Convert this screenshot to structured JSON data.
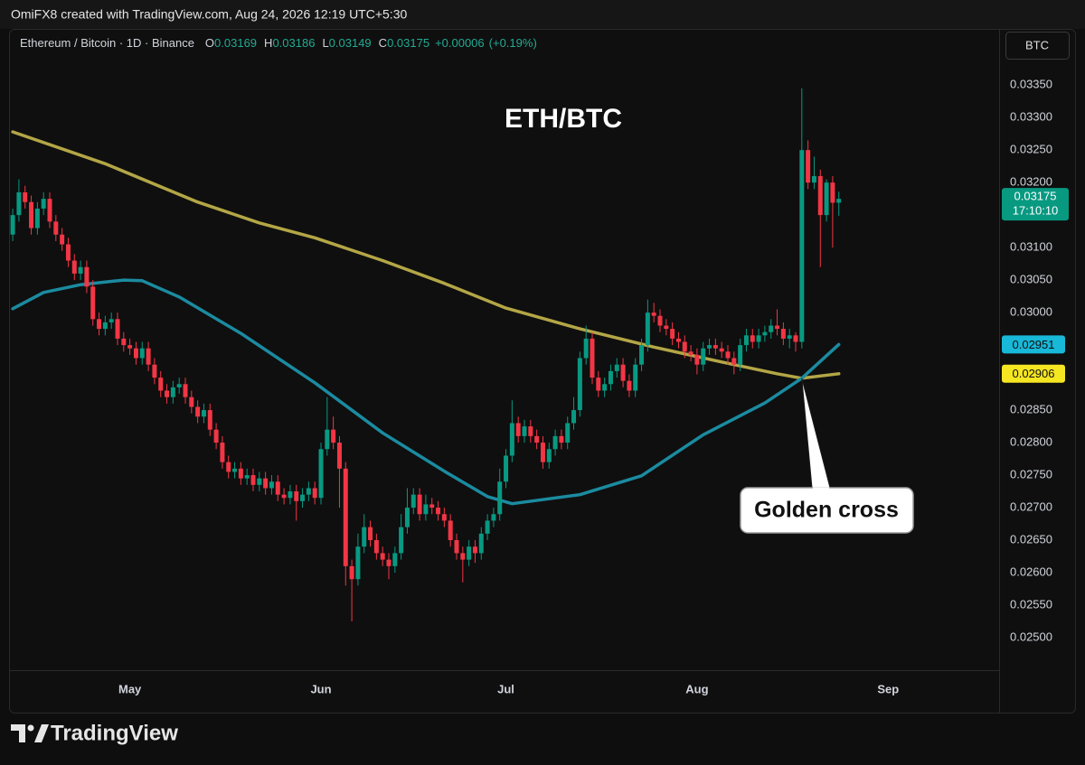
{
  "chart_data": {
    "type": "candlestick",
    "title": "ETH/BTC",
    "watermark_header": "OmiFX8 created with TradingView.com, Aug 24, 2026 12:19 UTC+5:30",
    "symbol": "Ethereum / Bitcoin · 1D · Binance",
    "ohlc_labels": [
      "O",
      "H",
      "L",
      "C"
    ],
    "change": "+0.00006",
    "change_pct": "(+0.19%)",
    "currency": "BTC",
    "annotation": "Golden cross",
    "countdown": "17:10:10",
    "brand": "TradingView",
    "up_color": "#089981",
    "down_color": "#f23645",
    "grid": false,
    "xlim": [
      -0.6,
      160
    ],
    "xticks": [
      {
        "value": 19,
        "label": "May"
      },
      {
        "value": 50,
        "label": "Jun"
      },
      {
        "value": 80,
        "label": "Jul"
      },
      {
        "value": 111,
        "label": "Aug"
      },
      {
        "value": 142,
        "label": "Sep"
      }
    ],
    "ylim": [
      0.0245,
      0.03435
    ],
    "yticks": [
      {
        "value": 0.025,
        "label": "0.02500"
      },
      {
        "value": 0.0255,
        "label": "0.02550"
      },
      {
        "value": 0.026,
        "label": "0.02600"
      },
      {
        "value": 0.0265,
        "label": "0.02650"
      },
      {
        "value": 0.027,
        "label": "0.02700"
      },
      {
        "value": 0.0275,
        "label": "0.02750"
      },
      {
        "value": 0.028,
        "label": "0.02800"
      },
      {
        "value": 0.0285,
        "label": "0.02850"
      },
      {
        "value": 0.029,
        "label": "0.02900"
      },
      {
        "value": 0.0295,
        "label": "0.02950"
      },
      {
        "value": 0.03,
        "label": "0.03000"
      },
      {
        "value": 0.0305,
        "label": "0.03050"
      },
      {
        "value": 0.031,
        "label": "0.03100"
      },
      {
        "value": 0.0315,
        "label": "0.03150"
      },
      {
        "value": 0.032,
        "label": "0.03200"
      },
      {
        "value": 0.0325,
        "label": "0.03250"
      },
      {
        "value": 0.033,
        "label": "0.03300"
      },
      {
        "value": 0.0335,
        "label": "0.03350"
      }
    ],
    "open": [
      0.0312,
      0.0315,
      0.03185,
      0.0317,
      0.0313,
      0.0316,
      0.03175,
      0.0314,
      0.0312,
      0.03105,
      0.0308,
      0.0306,
      0.0307,
      0.0304,
      0.0299,
      0.02975,
      0.02985,
      0.0299,
      0.0296,
      0.0295,
      0.02945,
      0.0293,
      0.02945,
      0.0292,
      0.029,
      0.0288,
      0.0287,
      0.02885,
      0.0289,
      0.0287,
      0.02855,
      0.0284,
      0.0285,
      0.0282,
      0.028,
      0.0277,
      0.02755,
      0.0276,
      0.02745,
      0.0275,
      0.02735,
      0.02745,
      0.0273,
      0.0274,
      0.0272,
      0.02715,
      0.02725,
      0.0271,
      0.0272,
      0.0273,
      0.02715,
      0.0279,
      0.0282,
      0.028,
      0.0276,
      0.0261,
      0.0259,
      0.0264,
      0.0267,
      0.0265,
      0.0263,
      0.0262,
      0.0261,
      0.0263,
      0.0267,
      0.027,
      0.0272,
      0.0269,
      0.02705,
      0.027,
      0.0269,
      0.0268,
      0.0265,
      0.0263,
      0.0262,
      0.0264,
      0.0263,
      0.0266,
      0.0268,
      0.0269,
      0.0274,
      0.0278,
      0.0283,
      0.0281,
      0.02825,
      0.0281,
      0.028,
      0.0277,
      0.0279,
      0.0281,
      0.028,
      0.0283,
      0.0285,
      0.0293,
      0.0296,
      0.029,
      0.0288,
      0.0289,
      0.0291,
      0.0292,
      0.02895,
      0.0288,
      0.0292,
      0.0295,
      0.03,
      0.02995,
      0.0298,
      0.02975,
      0.0296,
      0.02955,
      0.0294,
      0.02935,
      0.0292,
      0.02945,
      0.0295,
      0.02945,
      0.0294,
      0.0293,
      0.0292,
      0.0295,
      0.02965,
      0.02955,
      0.02965,
      0.0297,
      0.0298,
      0.02975,
      0.0296,
      0.02965,
      0.02955,
      0.0325,
      0.032,
      0.0321,
      0.0315,
      0.032,
      0.03169
    ],
    "high": [
      0.0316,
      0.03205,
      0.03195,
      0.0318,
      0.0317,
      0.03185,
      0.03185,
      0.0315,
      0.0313,
      0.03115,
      0.0309,
      0.0308,
      0.0308,
      0.0305,
      0.03,
      0.02995,
      0.03,
      0.03,
      0.0297,
      0.0296,
      0.02955,
      0.02955,
      0.02955,
      0.0293,
      0.0291,
      0.0289,
      0.02895,
      0.029,
      0.029,
      0.0288,
      0.02865,
      0.0286,
      0.0286,
      0.0283,
      0.0281,
      0.0278,
      0.0277,
      0.0277,
      0.0276,
      0.0276,
      0.02755,
      0.02755,
      0.0275,
      0.0275,
      0.0273,
      0.02735,
      0.02735,
      0.0273,
      0.0274,
      0.0274,
      0.028,
      0.0287,
      0.0284,
      0.0281,
      0.0277,
      0.0262,
      0.0266,
      0.0269,
      0.0268,
      0.0266,
      0.0264,
      0.0263,
      0.0264,
      0.0269,
      0.0273,
      0.0273,
      0.0273,
      0.0272,
      0.02715,
      0.0271,
      0.027,
      0.0269,
      0.0266,
      0.0264,
      0.0265,
      0.0265,
      0.0267,
      0.0269,
      0.027,
      0.0276,
      0.0279,
      0.02865,
      0.0284,
      0.02835,
      0.02835,
      0.0282,
      0.0281,
      0.028,
      0.0282,
      0.0282,
      0.0284,
      0.0287,
      0.0294,
      0.0298,
      0.0297,
      0.0291,
      0.029,
      0.0292,
      0.0293,
      0.0293,
      0.02905,
      0.0293,
      0.0296,
      0.0302,
      0.03015,
      0.03005,
      0.0299,
      0.02985,
      0.0297,
      0.02965,
      0.0295,
      0.02945,
      0.02955,
      0.0296,
      0.0296,
      0.02955,
      0.0295,
      0.0294,
      0.0296,
      0.02975,
      0.02975,
      0.02975,
      0.0298,
      0.0299,
      0.03005,
      0.02985,
      0.02975,
      0.0297,
      0.03345,
      0.03265,
      0.0324,
      0.0322,
      0.03205,
      0.0321,
      0.03186
    ],
    "low": [
      0.0311,
      0.0314,
      0.0316,
      0.0312,
      0.0312,
      0.0315,
      0.0313,
      0.0311,
      0.03095,
      0.0307,
      0.0305,
      0.0305,
      0.0303,
      0.0298,
      0.02965,
      0.02965,
      0.02975,
      0.0295,
      0.0294,
      0.02935,
      0.0292,
      0.0292,
      0.0291,
      0.0289,
      0.0287,
      0.0286,
      0.0286,
      0.02875,
      0.0286,
      0.02845,
      0.0283,
      0.0283,
      0.0281,
      0.0279,
      0.0276,
      0.02745,
      0.02745,
      0.02735,
      0.02735,
      0.02725,
      0.02725,
      0.0272,
      0.0272,
      0.0271,
      0.02705,
      0.02705,
      0.0268,
      0.027,
      0.0271,
      0.02705,
      0.02705,
      0.0278,
      0.0279,
      0.027,
      0.0258,
      0.02525,
      0.0258,
      0.0263,
      0.0264,
      0.0262,
      0.0261,
      0.0259,
      0.026,
      0.0262,
      0.0266,
      0.0269,
      0.0268,
      0.0268,
      0.0269,
      0.0268,
      0.0267,
      0.0264,
      0.0262,
      0.02585,
      0.0261,
      0.02615,
      0.0262,
      0.0265,
      0.0267,
      0.0268,
      0.0273,
      0.0277,
      0.028,
      0.028,
      0.028,
      0.0279,
      0.0276,
      0.0276,
      0.0278,
      0.0279,
      0.0279,
      0.0282,
      0.0284,
      0.0292,
      0.0289,
      0.0287,
      0.0287,
      0.0288,
      0.029,
      0.02885,
      0.0287,
      0.0287,
      0.0291,
      0.0294,
      0.02985,
      0.0297,
      0.02965,
      0.0295,
      0.02945,
      0.0293,
      0.02925,
      0.02905,
      0.0291,
      0.02935,
      0.02935,
      0.0293,
      0.0292,
      0.02905,
      0.0291,
      0.0294,
      0.02945,
      0.02945,
      0.02955,
      0.0296,
      0.02965,
      0.0295,
      0.02945,
      0.0294,
      0.02945,
      0.0319,
      0.0319,
      0.0307,
      0.0314,
      0.031,
      0.03149
    ],
    "close": [
      0.0315,
      0.03185,
      0.0317,
      0.0313,
      0.0316,
      0.03175,
      0.0314,
      0.0312,
      0.03105,
      0.0308,
      0.0306,
      0.0307,
      0.0304,
      0.0299,
      0.02975,
      0.02985,
      0.0299,
      0.0296,
      0.0295,
      0.02945,
      0.0293,
      0.02945,
      0.0292,
      0.029,
      0.0288,
      0.0287,
      0.02885,
      0.0289,
      0.0287,
      0.02855,
      0.0284,
      0.0285,
      0.0282,
      0.028,
      0.0277,
      0.02755,
      0.0276,
      0.02745,
      0.0275,
      0.02735,
      0.02745,
      0.0273,
      0.0274,
      0.0272,
      0.02715,
      0.02725,
      0.0271,
      0.0272,
      0.0273,
      0.02715,
      0.0279,
      0.0282,
      0.028,
      0.0276,
      0.0261,
      0.0259,
      0.0264,
      0.0267,
      0.0265,
      0.0263,
      0.0262,
      0.0261,
      0.0263,
      0.0267,
      0.027,
      0.0272,
      0.0269,
      0.02705,
      0.027,
      0.0269,
      0.0268,
      0.0265,
      0.0263,
      0.0262,
      0.0264,
      0.0263,
      0.0266,
      0.0268,
      0.0269,
      0.0274,
      0.0278,
      0.0283,
      0.0281,
      0.02825,
      0.0281,
      0.028,
      0.0277,
      0.0279,
      0.0281,
      0.028,
      0.0283,
      0.0285,
      0.0293,
      0.0296,
      0.029,
      0.0288,
      0.0289,
      0.0291,
      0.0292,
      0.02895,
      0.0288,
      0.0292,
      0.0295,
      0.03,
      0.02995,
      0.0298,
      0.02975,
      0.0296,
      0.02955,
      0.0294,
      0.02935,
      0.0292,
      0.02945,
      0.0295,
      0.02945,
      0.0294,
      0.0293,
      0.0292,
      0.0295,
      0.02965,
      0.02955,
      0.02965,
      0.0297,
      0.0298,
      0.02975,
      0.0296,
      0.02965,
      0.02955,
      0.0325,
      0.032,
      0.0321,
      0.0315,
      0.032,
      0.03169,
      0.03175
    ],
    "price_color": "#089981",
    "moving_averages": [
      {
        "color": "#b3a646",
        "label_color": "#f5e622",
        "x": [
          0,
          15,
          30,
          40,
          49,
          60,
          70,
          80,
          92,
          104,
          115,
          124,
          128,
          134
        ],
        "values": [
          0.03278,
          0.03229,
          0.0317,
          0.03138,
          0.03115,
          0.0308,
          0.03045,
          0.03007,
          0.02975,
          0.02947,
          0.02924,
          0.02906,
          0.02899,
          0.02906
        ]
      },
      {
        "color": "#1b8ba0",
        "label_color": "#18b8d8",
        "x": [
          0,
          5,
          11,
          18,
          21,
          27,
          37,
          49,
          60,
          70,
          77,
          81,
          92,
          102,
          112,
          122,
          128,
          134
        ],
        "values": [
          0.03006,
          0.03031,
          0.03043,
          0.0305,
          0.03049,
          0.03024,
          0.02968,
          0.02892,
          0.02815,
          0.02756,
          0.02717,
          0.02706,
          0.0272,
          0.02749,
          0.02812,
          0.02861,
          0.02899,
          0.02951
        ]
      }
    ]
  }
}
